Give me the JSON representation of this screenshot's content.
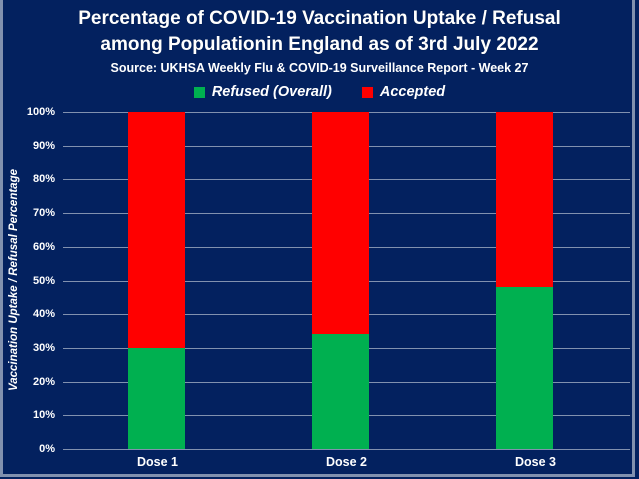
{
  "title": {
    "line1": "Percentage of COVID-19 Vaccination Uptake / Refusal",
    "line2": "among Populationin England as of 3rd July 2022"
  },
  "source": "Source: UKHSA Weekly Flu & COVID-19 Surveillance Report - Week 27",
  "legend": [
    {
      "label": "Refused (Overall)",
      "color": "#00b050"
    },
    {
      "label": "Accepted",
      "color": "#ff0000"
    }
  ],
  "y_axis_title": "Vaccination Uptake / Refusal Percentage",
  "colors": {
    "background": "#03215f",
    "border": "#8191af",
    "gridline": "#8191af",
    "text": "#ffffff",
    "refused": "#00b050",
    "accepted": "#ff0000"
  },
  "chart_data": {
    "type": "bar",
    "stacked": true,
    "title": "Percentage of COVID-19 Vaccination Uptake / Refusal among Populationin England as of 3rd July 2022",
    "subtitle": "Source: UKHSA Weekly Flu & COVID-19 Surveillance Report - Week 27",
    "categories": [
      "Dose 1",
      "Dose 2",
      "Dose 3"
    ],
    "series": [
      {
        "name": "Refused (Overall)",
        "color": "#00b050",
        "values": [
          30,
          34,
          48
        ]
      },
      {
        "name": "Accepted",
        "color": "#ff0000",
        "values": [
          70,
          66,
          52
        ]
      }
    ],
    "xlabel": "",
    "ylabel": "Vaccination Uptake / Refusal Percentage",
    "ylim": [
      0,
      100
    ],
    "yticks": [
      "0%",
      "10%",
      "20%",
      "30%",
      "40%",
      "50%",
      "60%",
      "70%",
      "80%",
      "90%",
      "100%"
    ],
    "grid": true,
    "legend_position": "top"
  }
}
